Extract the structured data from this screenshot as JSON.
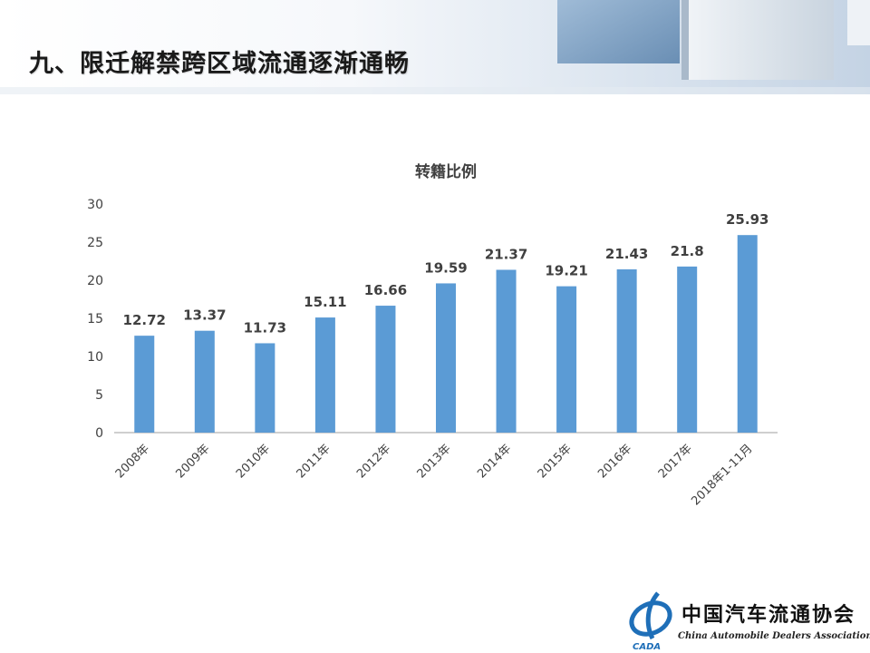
{
  "slide": {
    "title": "九、限迁解禁跨区域流通逐渐通畅"
  },
  "footer": {
    "org_name": "中国汽车流通协会",
    "org_name_en": "China Automobile Dealers Association",
    "logo_text": "CADA"
  },
  "colors": {
    "bar": "#5b9bd5",
    "axis": "#bfbfbf",
    "text": "#404040"
  },
  "chart_data": {
    "type": "bar",
    "title": "转籍比例",
    "categories": [
      "2008年",
      "2009年",
      "2010年",
      "2011年",
      "2012年",
      "2013年",
      "2014年",
      "2015年",
      "2016年",
      "2017年",
      "2018年1-11月"
    ],
    "values": [
      12.72,
      13.37,
      11.73,
      15.11,
      16.66,
      19.59,
      21.37,
      19.21,
      21.43,
      21.8,
      25.93
    ],
    "data_labels": [
      "12.72",
      "13.37",
      "11.73",
      "15.11",
      "16.66",
      "19.59",
      "21.37",
      "19.21",
      "21.43",
      "21.8",
      "25.93"
    ],
    "yticks": [
      0,
      5,
      10,
      15,
      20,
      25,
      30
    ],
    "ylim": [
      0,
      30
    ],
    "xlabel": "",
    "ylabel": "",
    "grid": false,
    "legend": "none"
  }
}
